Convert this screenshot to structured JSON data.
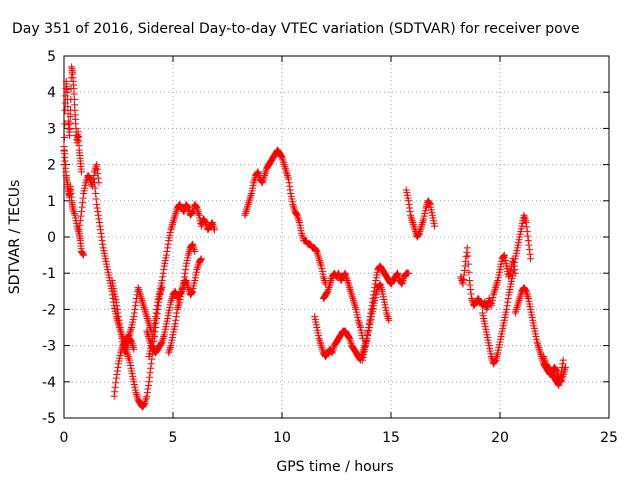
{
  "chart_data": {
    "type": "scatter",
    "title": "Day 351 of 2016, Sidereal Day-to-day VTEC variation (SDTVAR) for receiver pove",
    "xlabel": "GPS time / hours",
    "ylabel": "SDTVAR / TECUs",
    "xlim": [
      0,
      25
    ],
    "ylim": [
      -5,
      5
    ],
    "xticks": [
      0,
      5,
      10,
      15,
      20,
      25
    ],
    "yticks": [
      -5,
      -4,
      -3,
      -2,
      -1,
      0,
      1,
      2,
      3,
      4,
      5
    ],
    "grid": true,
    "marker": "+",
    "colors": {
      "series": "#ff0000",
      "grid": "#a0a0a0",
      "axis": "#000000"
    },
    "series": [
      {
        "name": "seg-a",
        "x": [
          0.0,
          0.05,
          0.1,
          0.15,
          0.2,
          0.25,
          0.3,
          0.35,
          0.4,
          0.45,
          0.5,
          0.55,
          0.6,
          0.65,
          0.7,
          0.75,
          0.8
        ],
        "y": [
          2.0,
          3.5,
          4.3,
          4.0,
          3.2,
          2.8,
          3.5,
          4.7,
          4.5,
          4.1,
          3.5,
          3.0,
          2.6,
          2.9,
          2.4,
          2.1,
          1.8
        ]
      },
      {
        "name": "seg-b",
        "x": [
          0.0,
          0.05,
          0.1,
          0.15,
          0.2,
          0.25,
          0.3,
          0.35,
          0.4,
          0.5,
          0.6,
          0.7,
          0.75,
          0.8,
          0.9
        ],
        "y": [
          2.5,
          2.1,
          1.7,
          1.5,
          1.3,
          1.1,
          1.4,
          1.0,
          0.8,
          0.6,
          0.3,
          0.1,
          -0.1,
          -0.4,
          -0.5
        ]
      },
      {
        "name": "seg-c",
        "x": [
          0.7,
          0.8,
          0.9,
          1.0,
          1.1,
          1.2,
          1.3,
          1.4,
          1.5,
          1.6
        ],
        "y": [
          0.2,
          0.7,
          1.2,
          1.5,
          1.7,
          1.6,
          1.4,
          1.8,
          2.0,
          1.5
        ]
      },
      {
        "name": "seg-d",
        "x": [
          1.4,
          1.5,
          1.6,
          1.7,
          1.8,
          1.9,
          2.0,
          2.1,
          2.2,
          2.3,
          2.4,
          2.5,
          2.6,
          2.7,
          2.8,
          2.9,
          3.0,
          3.1,
          3.2,
          3.3,
          3.4,
          3.5,
          3.6,
          3.7,
          3.8,
          3.9,
          4.0,
          4.1,
          4.2,
          4.3,
          4.4,
          4.5
        ],
        "y": [
          1.5,
          0.9,
          0.5,
          0.1,
          -0.3,
          -0.6,
          -0.9,
          -1.2,
          -1.5,
          -1.9,
          -2.2,
          -2.4,
          -2.6,
          -2.8,
          -3.0,
          -3.2,
          -3.4,
          -3.7,
          -4.0,
          -4.3,
          -4.5,
          -4.6,
          -4.7,
          -4.6,
          -4.4,
          -4.0,
          -3.5,
          -3.0,
          -2.5,
          -2.0,
          -1.6,
          -1.4
        ]
      },
      {
        "name": "seg-e",
        "x": [
          2.3,
          2.4,
          2.5,
          2.6,
          2.7,
          2.8,
          2.9,
          3.0,
          3.1,
          3.2,
          3.3,
          3.4,
          3.5,
          3.6,
          3.7,
          3.8,
          3.9,
          4.0
        ],
        "y": [
          -4.4,
          -3.9,
          -3.5,
          -3.2,
          -3.0,
          -2.9,
          -2.8,
          -2.7,
          -2.5,
          -2.2,
          -1.8,
          -1.4,
          -1.6,
          -1.8,
          -2.0,
          -2.2,
          -2.4,
          -2.6
        ]
      },
      {
        "name": "seg-f",
        "x": [
          2.2,
          2.3,
          2.4,
          2.5,
          2.6,
          2.7,
          2.8,
          2.9,
          3.0,
          3.1,
          3.2
        ],
        "y": [
          -1.2,
          -1.5,
          -1.8,
          -2.2,
          -2.6,
          -3.0,
          -3.2,
          -3.0,
          -2.8,
          -2.9,
          -3.1
        ]
      },
      {
        "name": "seg-g",
        "x": [
          3.8,
          3.9,
          4.0,
          4.1,
          4.2,
          4.3,
          4.4,
          4.5,
          4.6,
          4.7,
          4.8,
          4.9,
          5.0,
          5.1,
          5.2,
          5.3,
          5.4,
          5.5,
          5.6,
          5.7,
          5.8,
          5.9,
          6.0,
          6.1,
          6.2,
          6.3
        ],
        "y": [
          -2.6,
          -2.8,
          -3.0,
          -3.1,
          -3.2,
          -3.1,
          -3.0,
          -2.9,
          -2.7,
          -2.4,
          -2.1,
          -1.8,
          -1.6,
          -1.5,
          -1.7,
          -1.6,
          -1.5,
          -1.3,
          -1.2,
          -1.4,
          -1.6,
          -1.5,
          -1.2,
          -0.9,
          -0.7,
          -0.6
        ]
      },
      {
        "name": "seg-h",
        "x": [
          3.9,
          4.0,
          4.1,
          4.2,
          4.3,
          4.4,
          4.5,
          4.6,
          4.7,
          4.8,
          4.9,
          5.0,
          5.1,
          5.2,
          5.3,
          5.4,
          5.5,
          5.6,
          5.7,
          5.8,
          5.9,
          6.0,
          6.1,
          6.2
        ],
        "y": [
          -3.3,
          -3.0,
          -2.6,
          -2.2,
          -1.8,
          -1.5,
          -1.2,
          -0.8,
          -0.5,
          -0.1,
          0.2,
          0.4,
          0.6,
          0.8,
          0.9,
          0.8,
          0.7,
          0.9,
          0.8,
          0.6,
          0.7,
          0.9,
          0.8,
          0.6
        ]
      },
      {
        "name": "seg-i",
        "x": [
          4.8,
          4.9,
          5.0,
          5.1,
          5.2,
          5.3,
          5.4,
          5.5,
          5.6,
          5.7,
          5.8,
          5.9,
          6.0
        ],
        "y": [
          -3.2,
          -3.0,
          -2.7,
          -2.4,
          -2.0,
          -1.8,
          -1.5,
          -1.2,
          -0.8,
          -0.5,
          -0.3,
          -0.2,
          -0.4
        ]
      },
      {
        "name": "seg-j",
        "x": [
          6.2,
          6.3,
          6.4,
          6.5,
          6.6,
          6.7,
          6.8,
          6.9
        ],
        "y": [
          0.6,
          0.3,
          0.5,
          0.4,
          0.2,
          0.3,
          0.4,
          0.2
        ]
      },
      {
        "name": "seg-k",
        "x": [
          8.3,
          8.4,
          8.5,
          8.6,
          8.7,
          8.8,
          8.9,
          9.0,
          9.1,
          9.2,
          9.3,
          9.4,
          9.5,
          9.6,
          9.7,
          9.8,
          9.9,
          10.0,
          10.1,
          10.2,
          10.3,
          10.4,
          10.5,
          10.6,
          10.7,
          10.8,
          10.9,
          11.0,
          11.1,
          11.2,
          11.3,
          11.4,
          11.5,
          11.6,
          11.7,
          11.8,
          11.9,
          12.0
        ],
        "y": [
          0.6,
          0.8,
          1.0,
          1.2,
          1.5,
          1.7,
          1.8,
          1.6,
          1.5,
          1.7,
          1.9,
          2.0,
          2.1,
          2.2,
          2.3,
          2.4,
          2.3,
          2.2,
          2.0,
          1.8,
          1.6,
          1.2,
          0.9,
          0.7,
          0.6,
          0.4,
          0.1,
          -0.1,
          -0.1,
          -0.2,
          -0.2,
          -0.3,
          -0.3,
          -0.4,
          -0.6,
          -0.8,
          -1.1,
          -1.3
        ]
      },
      {
        "name": "seg-l",
        "x": [
          11.5,
          11.6,
          11.7,
          11.8,
          11.9,
          12.0,
          12.1,
          12.2,
          12.3,
          12.4,
          12.5,
          12.6,
          12.7,
          12.8,
          12.9,
          13.0,
          13.1,
          13.2,
          13.3,
          13.4,
          13.5,
          13.6,
          13.7,
          13.8,
          13.9,
          14.0,
          14.1,
          14.2,
          14.3,
          14.4,
          14.5,
          14.6,
          14.7,
          14.8,
          14.9
        ],
        "y": [
          -2.2,
          -2.5,
          -2.8,
          -3.0,
          -3.2,
          -3.3,
          -3.2,
          -3.1,
          -3.2,
          -3.0,
          -2.9,
          -2.8,
          -2.7,
          -2.6,
          -2.6,
          -2.7,
          -2.8,
          -3.0,
          -3.1,
          -3.2,
          -3.3,
          -3.4,
          -3.2,
          -3.0,
          -2.8,
          -2.5,
          -2.2,
          -1.9,
          -1.6,
          -1.4,
          -1.3,
          -1.5,
          -1.8,
          -2.1,
          -2.3
        ]
      },
      {
        "name": "seg-m",
        "x": [
          11.9,
          12.0,
          12.1,
          12.2,
          12.3,
          12.4,
          12.5,
          12.6,
          12.7,
          12.8,
          12.9,
          13.0,
          13.1,
          13.2,
          13.3,
          13.4,
          13.5,
          13.6,
          13.7
        ],
        "y": [
          -1.7,
          -1.6,
          -1.5,
          -1.3,
          -1.1,
          -1.0,
          -1.1,
          -1.0,
          -1.2,
          -1.1,
          -1.0,
          -1.2,
          -1.4,
          -1.6,
          -1.8,
          -2.0,
          -2.3,
          -2.5,
          -2.8
        ]
      },
      {
        "name": "seg-n",
        "x": [
          13.7,
          13.8,
          13.9,
          14.0,
          14.1,
          14.2,
          14.3,
          14.4,
          14.5,
          14.6,
          14.7,
          14.8,
          14.9,
          15.0,
          15.1,
          15.2,
          15.3,
          15.4,
          15.5,
          15.6,
          15.7,
          15.8
        ],
        "y": [
          -3.4,
          -3.1,
          -2.8,
          -2.4,
          -2.0,
          -1.6,
          -1.2,
          -0.9,
          -0.8,
          -0.9,
          -1.0,
          -1.1,
          -1.2,
          -1.3,
          -1.2,
          -1.1,
          -1.0,
          -1.2,
          -1.3,
          -1.1,
          -1.0,
          -1.0
        ]
      },
      {
        "name": "seg-o",
        "x": [
          15.7,
          15.8,
          15.9,
          16.0,
          16.1,
          16.2,
          16.3,
          16.4,
          16.5,
          16.6,
          16.7,
          16.8,
          16.9,
          17.0
        ],
        "y": [
          1.3,
          1.0,
          0.6,
          0.4,
          0.2,
          0.0,
          0.1,
          0.3,
          0.5,
          0.8,
          1.0,
          0.9,
          0.6,
          0.3
        ]
      },
      {
        "name": "seg-p",
        "x": [
          18.2,
          18.3,
          18.4,
          18.5,
          18.6,
          18.7,
          18.8,
          18.9,
          19.0,
          19.1,
          19.2,
          19.3,
          19.4,
          19.5,
          19.6,
          19.7,
          19.8,
          19.9,
          20.0,
          20.1,
          20.2,
          20.3,
          20.4,
          20.5,
          20.6,
          20.7
        ],
        "y": [
          -1.1,
          -1.3,
          -0.8,
          -0.3,
          -1.2,
          -1.7,
          -1.9,
          -1.8,
          -1.7,
          -1.8,
          -1.9,
          -1.8,
          -2.0,
          -1.7,
          -1.9,
          -1.6,
          -1.4,
          -1.2,
          -0.9,
          -0.6,
          -0.5,
          -0.8,
          -1.1,
          -0.9,
          -0.6,
          -1.0
        ]
      },
      {
        "name": "seg-q",
        "x": [
          19.2,
          19.3,
          19.4,
          19.5,
          19.6,
          19.7,
          19.8,
          19.9,
          20.0,
          20.1,
          20.2,
          20.3,
          20.4,
          20.5,
          20.6,
          20.7,
          20.8,
          20.9,
          21.0,
          21.1,
          21.2,
          21.3,
          21.4
        ],
        "y": [
          -2.1,
          -2.4,
          -2.7,
          -3.0,
          -3.3,
          -3.5,
          -3.4,
          -3.2,
          -2.9,
          -2.6,
          -2.3,
          -2.0,
          -1.6,
          -1.3,
          -1.0,
          -0.6,
          -0.3,
          0.0,
          0.3,
          0.6,
          0.4,
          -0.1,
          -0.6
        ]
      },
      {
        "name": "seg-r",
        "x": [
          20.7,
          20.8,
          20.9,
          21.0,
          21.1,
          21.2,
          21.3,
          21.4,
          21.5,
          21.6,
          21.7,
          21.8,
          21.9,
          22.0,
          22.1,
          22.2,
          22.3,
          22.4,
          22.5,
          22.6,
          22.7,
          22.8,
          22.9,
          23.0
        ],
        "y": [
          -2.1,
          -1.9,
          -1.7,
          -1.5,
          -1.4,
          -1.5,
          -1.7,
          -2.0,
          -2.3,
          -2.6,
          -2.9,
          -3.1,
          -3.3,
          -3.5,
          -3.6,
          -3.7,
          -3.8,
          -3.7,
          -3.6,
          -3.7,
          -3.9,
          -4.0,
          -3.8,
          -3.6
        ]
      },
      {
        "name": "seg-s",
        "x": [
          22.0,
          22.1,
          22.2,
          22.3,
          22.4,
          22.5,
          22.6,
          22.7,
          22.8,
          22.9
        ],
        "y": [
          -3.3,
          -3.5,
          -3.6,
          -3.7,
          -3.8,
          -3.9,
          -4.0,
          -4.1,
          -3.8,
          -3.4
        ]
      }
    ]
  }
}
